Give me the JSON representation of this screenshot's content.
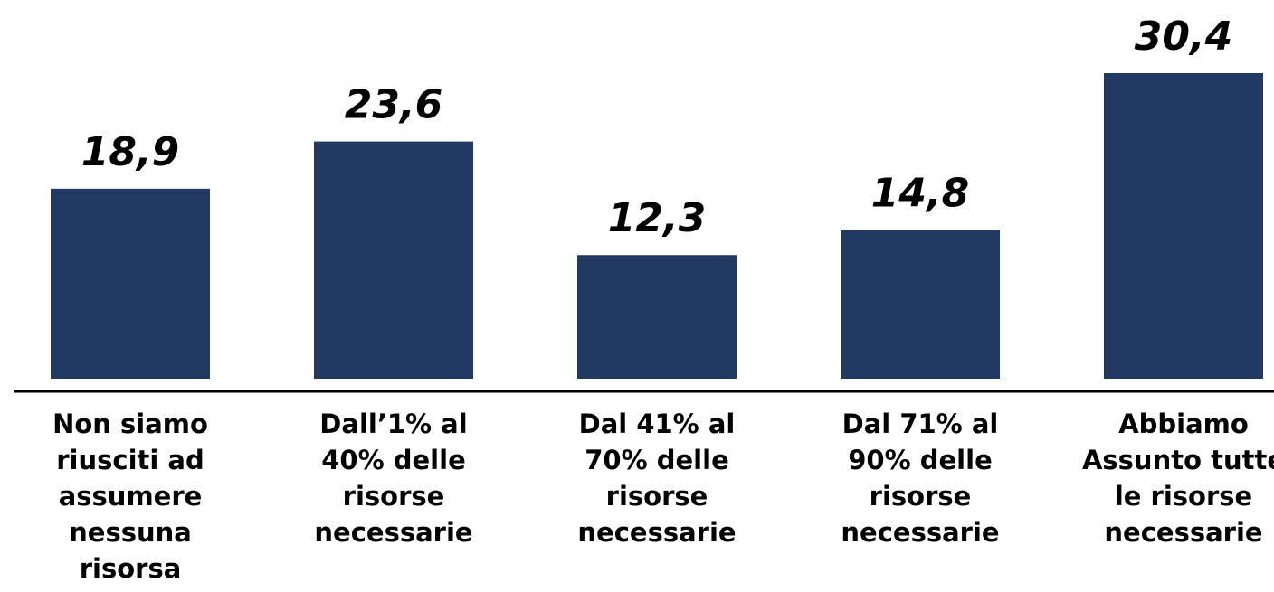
{
  "chart_data": {
    "type": "bar",
    "categories": [
      [
        "Non siamo",
        "riusciti ad",
        "assumere",
        "nessuna",
        "risorsa"
      ],
      [
        "Dall’1% al",
        "40% delle",
        "risorse",
        "necessarie"
      ],
      [
        "Dal 41% al",
        "70% delle",
        "risorse",
        "necessarie"
      ],
      [
        "Dal 71% al",
        "90% delle",
        "risorse",
        "necessarie"
      ],
      [
        "Abbiamo",
        "Assunto tutte",
        "le risorse",
        "necessarie"
      ]
    ],
    "values": [
      18.9,
      23.6,
      12.3,
      14.8,
      30.4
    ],
    "value_labels": [
      "18,9",
      "23,6",
      "12,3",
      "14,8",
      "30,4"
    ],
    "ylim": [
      0,
      30.4
    ],
    "grid": false,
    "legend": "none",
    "bar_color": "#223a63",
    "axis_color": "#000000",
    "title": "",
    "xlabel": "",
    "ylabel": ""
  }
}
